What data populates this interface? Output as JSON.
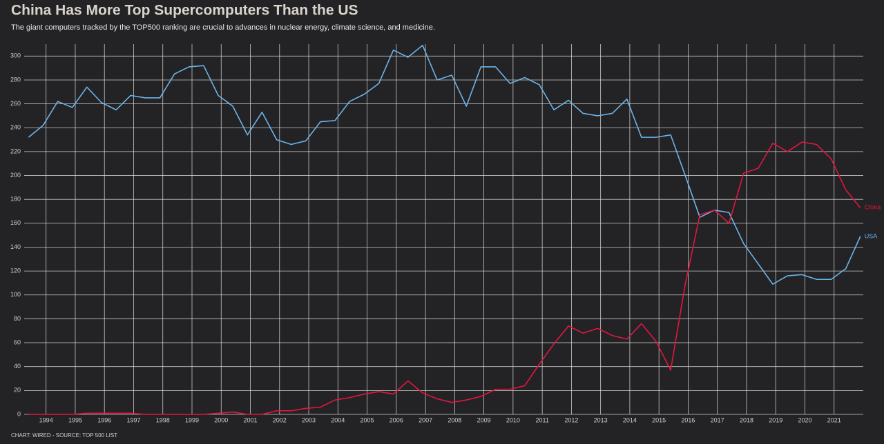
{
  "chart_data": {
    "type": "line",
    "title": "China Has More Top Supercomputers Than the US",
    "subtitle": "The giant computers tracked by the TOP500 ranking are crucial to advances in nuclear energy, climate science, and medicine.",
    "source": "CHART: WIRED - SOURCE: TOP 500 LIST",
    "x": [
      1993.4,
      1993.9,
      1994.4,
      1994.9,
      1995.4,
      1995.9,
      1996.4,
      1996.9,
      1997.4,
      1997.9,
      1998.4,
      1998.9,
      1999.4,
      1999.9,
      2000.4,
      2000.9,
      2001.4,
      2001.9,
      2002.4,
      2002.9,
      2003.4,
      2003.9,
      2004.4,
      2004.9,
      2005.4,
      2005.9,
      2006.4,
      2006.9,
      2007.4,
      2007.9,
      2008.4,
      2008.9,
      2009.4,
      2009.9,
      2010.4,
      2010.9,
      2011.4,
      2011.9,
      2012.4,
      2012.9,
      2013.4,
      2013.9,
      2014.4,
      2014.9,
      2015.4,
      2015.9,
      2016.4,
      2016.9,
      2017.4,
      2017.9,
      2018.4,
      2018.9,
      2019.4,
      2019.9,
      2020.4,
      2020.9,
      2021.4,
      2021.9
    ],
    "series": [
      {
        "name": "USA",
        "color": "#6cb4ea",
        "values": [
          232,
          242,
          262,
          257,
          274,
          261,
          255,
          267,
          265,
          265,
          285,
          291,
          292,
          267,
          258,
          234,
          253,
          230,
          226,
          229,
          245,
          246,
          262,
          268,
          277,
          305,
          299,
          309,
          280,
          284,
          258,
          291,
          291,
          277,
          282,
          276,
          255,
          263,
          252,
          250,
          252,
          264,
          232,
          232,
          234,
          200,
          165,
          171,
          169,
          143,
          126,
          109,
          116,
          117,
          113,
          113,
          122,
          149
        ]
      },
      {
        "name": "China",
        "color": "#e3163f",
        "values": [
          0,
          0,
          0,
          0,
          1,
          1,
          1,
          1,
          0,
          0,
          0,
          0,
          0,
          1,
          2,
          0,
          0,
          3,
          3,
          5,
          6,
          12,
          14,
          17,
          19,
          17,
          28,
          18,
          13,
          10,
          12,
          15,
          21,
          21,
          24,
          42,
          59,
          74,
          68,
          72,
          66,
          63,
          76,
          61,
          37,
          109,
          167,
          171,
          160,
          202,
          206,
          227,
          220,
          228,
          226,
          214,
          188,
          173
        ]
      }
    ],
    "xlim": [
      1993.25,
      2022.0
    ],
    "xticks": [
      1994,
      1995,
      1996,
      1997,
      1998,
      1999,
      2000,
      2001,
      2002,
      2003,
      2004,
      2005,
      2006,
      2007,
      2008,
      2009,
      2010,
      2011,
      2012,
      2013,
      2014,
      2015,
      2016,
      2017,
      2018,
      2019,
      2020,
      2021
    ],
    "ylim": [
      0,
      310
    ],
    "yticks": [
      0,
      20,
      40,
      60,
      80,
      100,
      120,
      140,
      160,
      180,
      200,
      220,
      240,
      260,
      280,
      300
    ],
    "grid": true
  }
}
